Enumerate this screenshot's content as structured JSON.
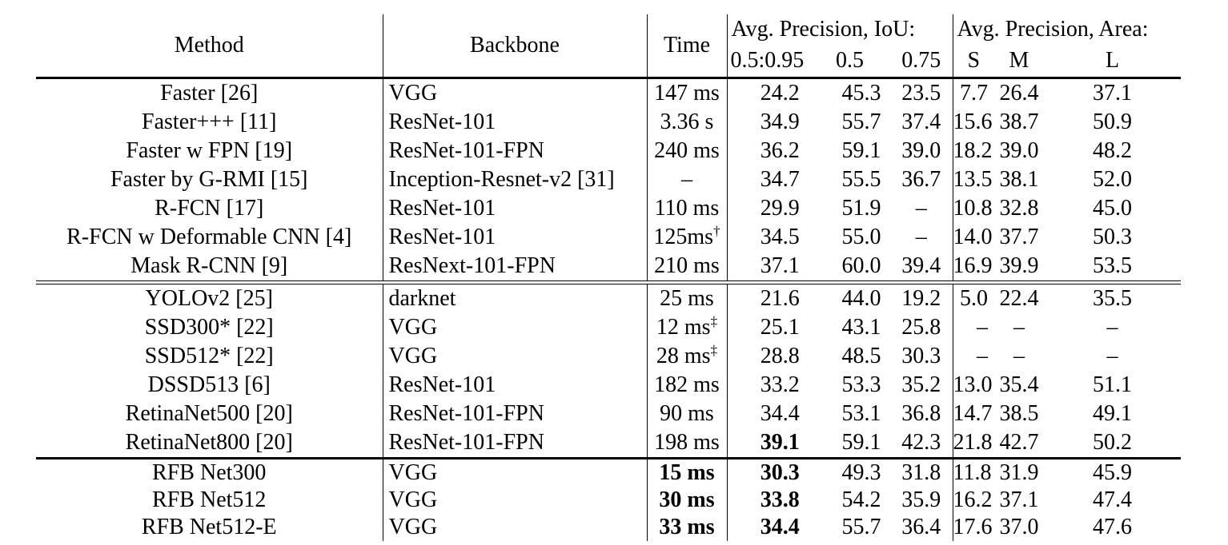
{
  "table": {
    "header": {
      "method": "Method",
      "backbone": "Backbone",
      "time": "Time",
      "group_iou": "Avg. Precision, IoU:",
      "group_area": "Avg. Precision, Area:",
      "sub": {
        "iou_main": "0.5:0.95",
        "iou_05": "0.5",
        "iou_075": "0.75",
        "s": "S",
        "m": "M",
        "l": "L"
      }
    },
    "sections": [
      {
        "rows": [
          {
            "method": "Faster [26]",
            "backbone": "VGG",
            "time": "147 ms",
            "time_sup": "",
            "bold_time": false,
            "ap": "24.2",
            "bold_ap": false,
            "ap50": "45.3",
            "ap75": "23.5",
            "s": "7.7",
            "m": "26.4",
            "l": "37.1"
          },
          {
            "method": "Faster+++ [11]",
            "backbone": "ResNet-101",
            "time": "3.36 s",
            "time_sup": "",
            "bold_time": false,
            "ap": "34.9",
            "bold_ap": false,
            "ap50": "55.7",
            "ap75": "37.4",
            "s": "15.6",
            "m": "38.7",
            "l": "50.9"
          },
          {
            "method": "Faster w FPN [19]",
            "backbone": "ResNet-101-FPN",
            "time": "240 ms",
            "time_sup": "",
            "bold_time": false,
            "ap": "36.2",
            "bold_ap": false,
            "ap50": "59.1",
            "ap75": "39.0",
            "s": "18.2",
            "m": "39.0",
            "l": "48.2"
          },
          {
            "method": "Faster by G-RMI [15]",
            "backbone": "Inception-Resnet-v2 [31]",
            "time": "–",
            "time_sup": "",
            "bold_time": false,
            "ap": "34.7",
            "bold_ap": false,
            "ap50": "55.5",
            "ap75": "36.7",
            "s": "13.5",
            "m": "38.1",
            "l": "52.0"
          },
          {
            "method": "R-FCN [17]",
            "backbone": "ResNet-101",
            "time": "110 ms",
            "time_sup": "",
            "bold_time": false,
            "ap": "29.9",
            "bold_ap": false,
            "ap50": "51.9",
            "ap75": "–",
            "s": "10.8",
            "m": "32.8",
            "l": "45.0"
          },
          {
            "method": "R-FCN w Deformable CNN [4]",
            "backbone": "ResNet-101",
            "time": "125ms",
            "time_sup": "†",
            "bold_time": false,
            "ap": "34.5",
            "bold_ap": false,
            "ap50": "55.0",
            "ap75": "–",
            "s": "14.0",
            "m": "37.7",
            "l": "50.3"
          },
          {
            "method": "Mask R-CNN [9]",
            "backbone": "ResNext-101-FPN",
            "time": "210 ms",
            "time_sup": "",
            "bold_time": false,
            "ap": "37.1",
            "bold_ap": false,
            "ap50": "60.0",
            "ap75": "39.4",
            "s": "16.9",
            "m": "39.9",
            "l": "53.5"
          }
        ]
      },
      {
        "rows": [
          {
            "method": "YOLOv2 [25]",
            "backbone": "darknet",
            "time": "25 ms",
            "time_sup": "",
            "bold_time": false,
            "ap": "21.6",
            "bold_ap": false,
            "ap50": "44.0",
            "ap75": "19.2",
            "s": "5.0",
            "m": "22.4",
            "l": "35.5"
          },
          {
            "method": "SSD300* [22]",
            "backbone": "VGG",
            "time": "12 ms",
            "time_sup": "‡",
            "bold_time": false,
            "ap": "25.1",
            "bold_ap": false,
            "ap50": "43.1",
            "ap75": "25.8",
            "s": "–",
            "m": "–",
            "l": "–"
          },
          {
            "method": "SSD512* [22]",
            "backbone": "VGG",
            "time": "28 ms",
            "time_sup": "‡",
            "bold_time": false,
            "ap": "28.8",
            "bold_ap": false,
            "ap50": "48.5",
            "ap75": "30.3",
            "s": "–",
            "m": "–",
            "l": "–"
          },
          {
            "method": "DSSD513 [6]",
            "backbone": "ResNet-101",
            "time": "182 ms",
            "time_sup": "",
            "bold_time": false,
            "ap": "33.2",
            "bold_ap": false,
            "ap50": "53.3",
            "ap75": "35.2",
            "s": "13.0",
            "m": "35.4",
            "l": "51.1"
          },
          {
            "method": "RetinaNet500 [20]",
            "backbone": "ResNet-101-FPN",
            "time": "90 ms",
            "time_sup": "",
            "bold_time": false,
            "ap": "34.4",
            "bold_ap": false,
            "ap50": "53.1",
            "ap75": "36.8",
            "s": "14.7",
            "m": "38.5",
            "l": "49.1"
          },
          {
            "method": "RetinaNet800 [20]",
            "backbone": "ResNet-101-FPN",
            "time": "198 ms",
            "time_sup": "",
            "bold_time": false,
            "ap": "39.1",
            "bold_ap": true,
            "ap50": "59.1",
            "ap75": "42.3",
            "s": "21.8",
            "m": "42.7",
            "l": "50.2"
          }
        ]
      },
      {
        "rows": [
          {
            "method": "RFB Net300",
            "backbone": "VGG",
            "time": "15 ms",
            "time_sup": "",
            "bold_time": true,
            "ap": "30.3",
            "bold_ap": true,
            "ap50": "49.3",
            "ap75": "31.8",
            "s": "11.8",
            "m": "31.9",
            "l": "45.9"
          },
          {
            "method": "RFB Net512",
            "backbone": "VGG",
            "time": "30 ms",
            "time_sup": "",
            "bold_time": true,
            "ap": "33.8",
            "bold_ap": true,
            "ap50": "54.2",
            "ap75": "35.9",
            "s": "16.2",
            "m": "37.1",
            "l": "47.4"
          },
          {
            "method": "RFB Net512-E",
            "backbone": "VGG",
            "time": "33 ms",
            "time_sup": "",
            "bold_time": true,
            "ap": "34.4",
            "bold_ap": true,
            "ap50": "55.7",
            "ap75": "36.4",
            "s": "17.6",
            "m": "37.0",
            "l": "47.6"
          }
        ]
      }
    ]
  }
}
